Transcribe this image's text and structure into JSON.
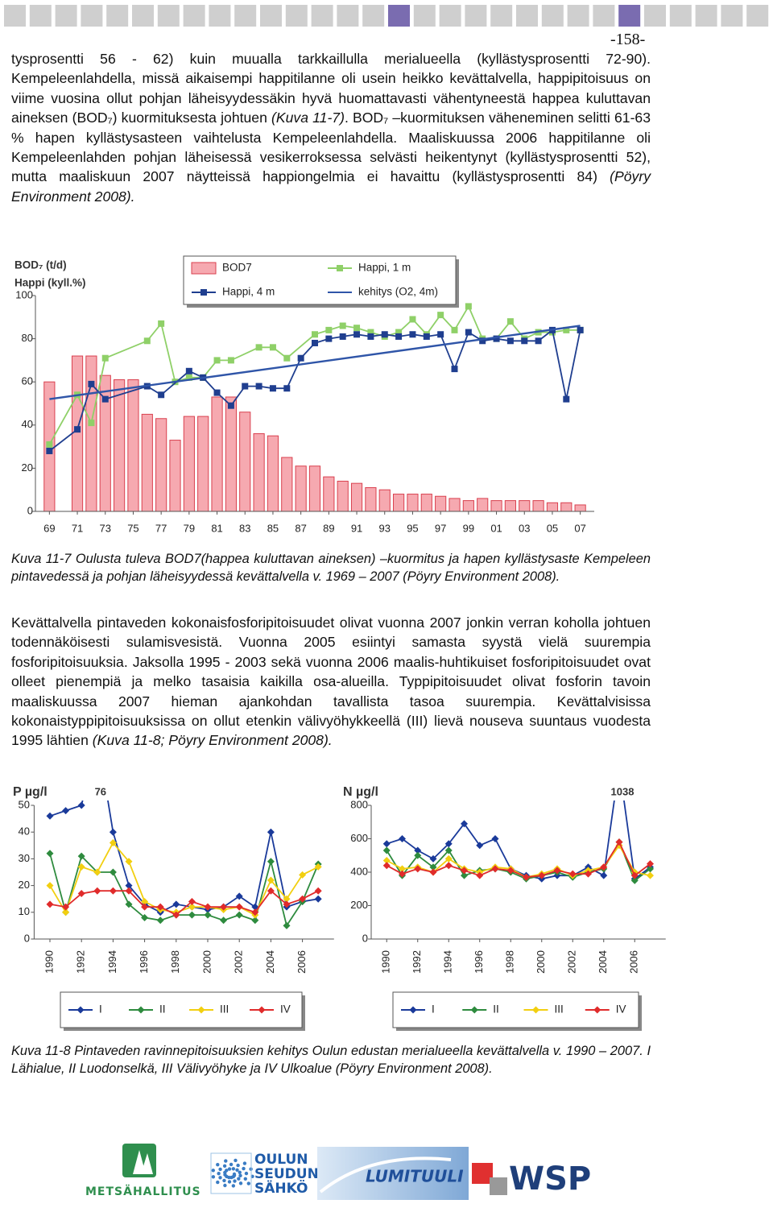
{
  "page_number": "-158-",
  "paragraphs": [
    [
      {
        "text": "tysprosentti 56 - 62) kuin muualla tarkkaillulla merialueella (kyllästysprosentti 72-90). Kempeleenlahdella, missä aikaisempi happitilanne oli usein heikko kevättalvella, happipitoisuus on viime vuosina ollut pohjan läheisyydessäkin hyvä huomattavasti vähentyneestä happea kuluttavan aineksen (BOD₇) kuormituksesta johtuen ",
        "italic": false
      },
      {
        "text": "(Kuva 11-7)",
        "italic": true
      },
      {
        "text": ". BOD₇ –kuormituksen väheneminen selitti 61-63 % hapen kyllästysasteen vaihtelusta Kempeleenlahdella. Maaliskuussa 2006 happitilanne oli Kempeleenlahden pohjan läheisessä vesikerroksessa selvästi heikentynyt (kyllästysprosentti 52), mutta maaliskuun 2007 näytteissä happiongelmia ei havaittu (kyllästysprosentti 84) ",
        "italic": false
      },
      {
        "text": "(Pöyry Environment 2008).",
        "italic": true
      }
    ],
    [
      {
        "text": "Kevättalvella pintaveden kokonaisfosforipitoisuudet olivat vuonna 2007 jonkin verran koholla johtuen todennäköisesti sulamisvesistä. Vuonna 2005 esiintyi samasta syystä vielä suurempia fosforipitoisuuksia. Jaksolla 1995 - 2003 sekä vuonna 2006 maalis-huhtikuiset fosforipitoisuudet ovat olleet pienempiä ja melko tasaisia kaikilla osa-alueilla. Typpipitoisuudet olivat fosforin tavoin maaliskuussa 2007 hieman ajankohdan tavallista tasoa suurempia. Kevättalvisissa kokonaistyppipitoisuuksissa on ollut etenkin välivyöhykkeellä (III) lievä nouseva suuntaus vuodesta 1995 lähtien ",
        "italic": false
      },
      {
        "text": "(Kuva 11-8; Pöyry Environment 2008).",
        "italic": true
      }
    ]
  ],
  "captions": [
    "Kuva 11-7 Oulusta tuleva BOD7(happea kuluttavan aineksen) –kuormitus ja hapen kyllästysaste Kempeleen pintavedessä ja pohjan läheisyydessä kevättalvella v. 1969 – 2007 (Pöyry Environment 2008).",
    "Kuva 11-8 Pintaveden ravinnepitoisuuksien kehitys Oulun edustan merialueella kevättalvella v. 1990 – 2007. I Lähialue, II Luodonselkä, III Välivyöhyke ja IV Ulkoalue (Pöyry Environment 2008)."
  ],
  "chart_data": [
    {
      "type": "combo",
      "y_labels": [
        "BOD₇ (t/d)",
        "Happi (kyll.%)"
      ],
      "xlim": [
        1968,
        2008
      ],
      "xticks": [
        {
          "value": 1969,
          "label": "69"
        },
        {
          "value": 1971,
          "label": "71"
        },
        {
          "value": 1973,
          "label": "73"
        },
        {
          "value": 1975,
          "label": "75"
        },
        {
          "value": 1977,
          "label": "77"
        },
        {
          "value": 1979,
          "label": "79"
        },
        {
          "value": 1981,
          "label": "81"
        },
        {
          "value": 1983,
          "label": "83"
        },
        {
          "value": 1985,
          "label": "85"
        },
        {
          "value": 1987,
          "label": "87"
        },
        {
          "value": 1989,
          "label": "89"
        },
        {
          "value": 1991,
          "label": "91"
        },
        {
          "value": 1993,
          "label": "93"
        },
        {
          "value": 1995,
          "label": "95"
        },
        {
          "value": 1997,
          "label": "97"
        },
        {
          "value": 1999,
          "label": "99"
        },
        {
          "value": 2001,
          "label": "01"
        },
        {
          "value": 2003,
          "label": "03"
        },
        {
          "value": 2005,
          "label": "05"
        },
        {
          "value": 2007,
          "label": "07"
        }
      ],
      "ylim": [
        0,
        100
      ],
      "yticks": [
        0,
        20,
        40,
        60,
        80,
        100
      ],
      "grid": false,
      "legend": "top",
      "series": [
        {
          "name": "BOD7",
          "type": "bar",
          "color": "#f6a9b0",
          "edgecolor": "#d9414f",
          "x": [
            1969,
            1971,
            1972,
            1973,
            1974,
            1975,
            1976,
            1977,
            1978,
            1979,
            1980,
            1981,
            1982,
            1983,
            1984,
            1985,
            1986,
            1987,
            1988,
            1989,
            1990,
            1991,
            1992,
            1993,
            1994,
            1995,
            1996,
            1997,
            1998,
            1999,
            2000,
            2001,
            2002,
            2003,
            2004,
            2005,
            2006,
            2007
          ],
          "values": [
            60,
            72,
            72,
            63,
            61,
            61,
            45,
            43,
            33,
            44,
            44,
            53,
            53,
            46,
            36,
            35,
            25,
            21,
            21,
            16,
            14,
            13,
            11,
            10,
            8,
            8,
            8,
            7,
            6,
            5,
            6,
            5,
            5,
            5,
            5,
            4,
            4,
            3
          ]
        },
        {
          "name": "Happi, 1 m",
          "type": "line",
          "marker": "square",
          "color": "#8fd068",
          "x": [
            1969,
            1971,
            1972,
            1973,
            1976,
            1977,
            1978,
            1979,
            1980,
            1981,
            1982,
            1984,
            1985,
            1986,
            1988,
            1989,
            1990,
            1991,
            1992,
            1993,
            1994,
            1995,
            1996,
            1997,
            1998,
            1999,
            2000,
            2001,
            2002,
            2003,
            2004,
            2005,
            2006,
            2007
          ],
          "values": [
            31,
            54,
            41,
            71,
            79,
            87,
            60,
            62,
            62,
            70,
            70,
            76,
            76,
            71,
            82,
            84,
            86,
            85,
            83,
            81,
            83,
            89,
            82,
            91,
            84,
            95,
            80,
            80,
            88,
            80,
            83,
            83,
            84,
            84
          ]
        },
        {
          "name": "Happi, 4 m",
          "type": "line",
          "marker": "square",
          "color": "#1f3e8f",
          "x": [
            1969,
            1971,
            1972,
            1973,
            1976,
            1977,
            1979,
            1980,
            1981,
            1982,
            1983,
            1984,
            1985,
            1986,
            1987,
            1988,
            1989,
            1990,
            1991,
            1992,
            1993,
            1994,
            1995,
            1996,
            1997,
            1998,
            1999,
            2000,
            2001,
            2002,
            2003,
            2004,
            2005,
            2006,
            2007
          ],
          "values": [
            28,
            38,
            59,
            52,
            58,
            54,
            65,
            62,
            55,
            49,
            58,
            58,
            57,
            57,
            71,
            78,
            80,
            81,
            82,
            81,
            82,
            81,
            82,
            81,
            82,
            66,
            83,
            79,
            80,
            79,
            79,
            79,
            84,
            52,
            84
          ]
        },
        {
          "name": "kehitys (O2, 4m)",
          "type": "line",
          "marker": "none",
          "color": "#2f55a8",
          "x": [
            1969,
            2007
          ],
          "values": [
            52,
            86
          ]
        }
      ]
    },
    {
      "type": "line",
      "y_label": "P µg/l",
      "annotation": "76",
      "x": [
        1990,
        1991,
        1992,
        1993,
        1994,
        1995,
        1996,
        1997,
        1998,
        1999,
        2000,
        2001,
        2002,
        2003,
        2004,
        2005,
        2006,
        2007
      ],
      "xlim": [
        1989,
        2008
      ],
      "xticks": [
        1990,
        1992,
        1994,
        1996,
        1998,
        2000,
        2002,
        2004,
        2006
      ],
      "ylim": [
        0,
        50
      ],
      "yticks": [
        0,
        10,
        20,
        30,
        40,
        50
      ],
      "grid": false,
      "legend": "bottom",
      "series": [
        {
          "name": "I",
          "marker": "diamond",
          "color": "#1a3a9a",
          "values": [
            46,
            48,
            50,
            76,
            40,
            20,
            13,
            10,
            13,
            12,
            11,
            12,
            16,
            12,
            40,
            12,
            14,
            15
          ]
        },
        {
          "name": "II",
          "marker": "diamond",
          "color": "#2e8b3e",
          "values": [
            32,
            10,
            31,
            25,
            25,
            13,
            8,
            7,
            9,
            9,
            9,
            7,
            9,
            7,
            29,
            5,
            14,
            28
          ]
        },
        {
          "name": "III",
          "marker": "diamond",
          "color": "#f2cf10",
          "values": [
            20,
            10,
            27,
            25,
            36,
            29,
            14,
            11,
            10,
            12,
            12,
            11,
            12,
            9,
            22,
            15,
            24,
            27
          ]
        },
        {
          "name": "IV",
          "marker": "diamond",
          "color": "#e02b2b",
          "values": [
            13,
            12,
            17,
            18,
            18,
            18,
            12,
            12,
            9,
            14,
            12,
            12,
            12,
            10,
            18,
            13,
            15,
            18
          ]
        }
      ]
    },
    {
      "type": "line",
      "y_label": "N µg/l",
      "annotation": "1038",
      "x": [
        1990,
        1991,
        1992,
        1993,
        1994,
        1995,
        1996,
        1997,
        1998,
        1999,
        2000,
        2001,
        2002,
        2003,
        2004,
        2005,
        2006,
        2007
      ],
      "xlim": [
        1989,
        2008
      ],
      "xticks": [
        1990,
        1992,
        1994,
        1996,
        1998,
        2000,
        2002,
        2004,
        2006
      ],
      "ylim": [
        0,
        800
      ],
      "yticks": [
        0,
        200,
        400,
        600,
        800
      ],
      "grid": false,
      "legend": "bottom",
      "series": [
        {
          "name": "I",
          "marker": "diamond",
          "color": "#1a3a9a",
          "values": [
            570,
            600,
            530,
            480,
            570,
            690,
            560,
            600,
            420,
            380,
            360,
            380,
            380,
            430,
            380,
            1038,
            360,
            430
          ]
        },
        {
          "name": "II",
          "marker": "diamond",
          "color": "#2e8b3e",
          "values": [
            530,
            380,
            500,
            430,
            530,
            380,
            410,
            420,
            400,
            360,
            380,
            400,
            370,
            400,
            420,
            580,
            350,
            420
          ]
        },
        {
          "name": "III",
          "marker": "diamond",
          "color": "#f2cf10",
          "values": [
            470,
            420,
            430,
            400,
            480,
            420,
            400,
            430,
            420,
            370,
            390,
            420,
            380,
            410,
            430,
            560,
            400,
            380
          ]
        },
        {
          "name": "IV",
          "marker": "diamond",
          "color": "#e02b2b",
          "values": [
            440,
            390,
            420,
            400,
            440,
            410,
            380,
            420,
            410,
            370,
            380,
            410,
            390,
            390,
            430,
            580,
            380,
            450
          ]
        }
      ]
    }
  ],
  "logos": {
    "metsahallitus": "METSÄHALLITUS",
    "oulun_seudun_sahko": [
      "OULUN",
      "SEUDUN",
      "SÄHKÖ"
    ],
    "lumituuli": "LUMITUULI",
    "wsp": "WSP"
  }
}
